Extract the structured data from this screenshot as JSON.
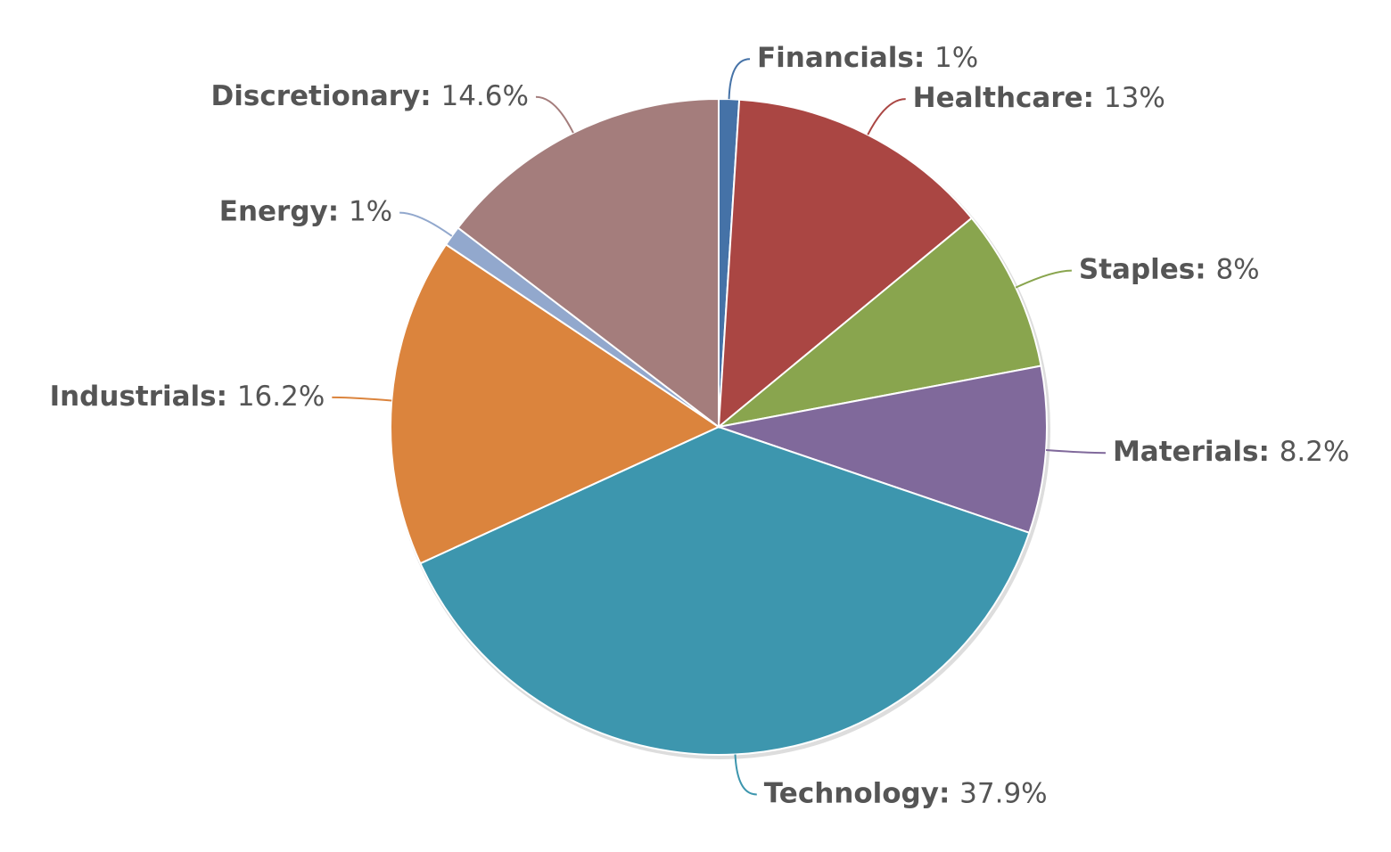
{
  "chart_data": {
    "type": "pie",
    "categories": [
      "Financials",
      "Healthcare",
      "Staples",
      "Materials",
      "Technology",
      "Industrials",
      "Energy",
      "Discretionary"
    ],
    "values": [
      1,
      13,
      8,
      8.2,
      37.9,
      16.2,
      1,
      14.6
    ],
    "value_labels": [
      "1%",
      "13%",
      "8%",
      "8.2%",
      "37.9%",
      "16.2%",
      "1%",
      "14.6%"
    ],
    "label_separator": ": ",
    "colors": [
      "#4572a7",
      "#aa4643",
      "#89a54e",
      "#80699b",
      "#3d96ae",
      "#db843d",
      "#92a8cd",
      "#a47d7c"
    ]
  }
}
